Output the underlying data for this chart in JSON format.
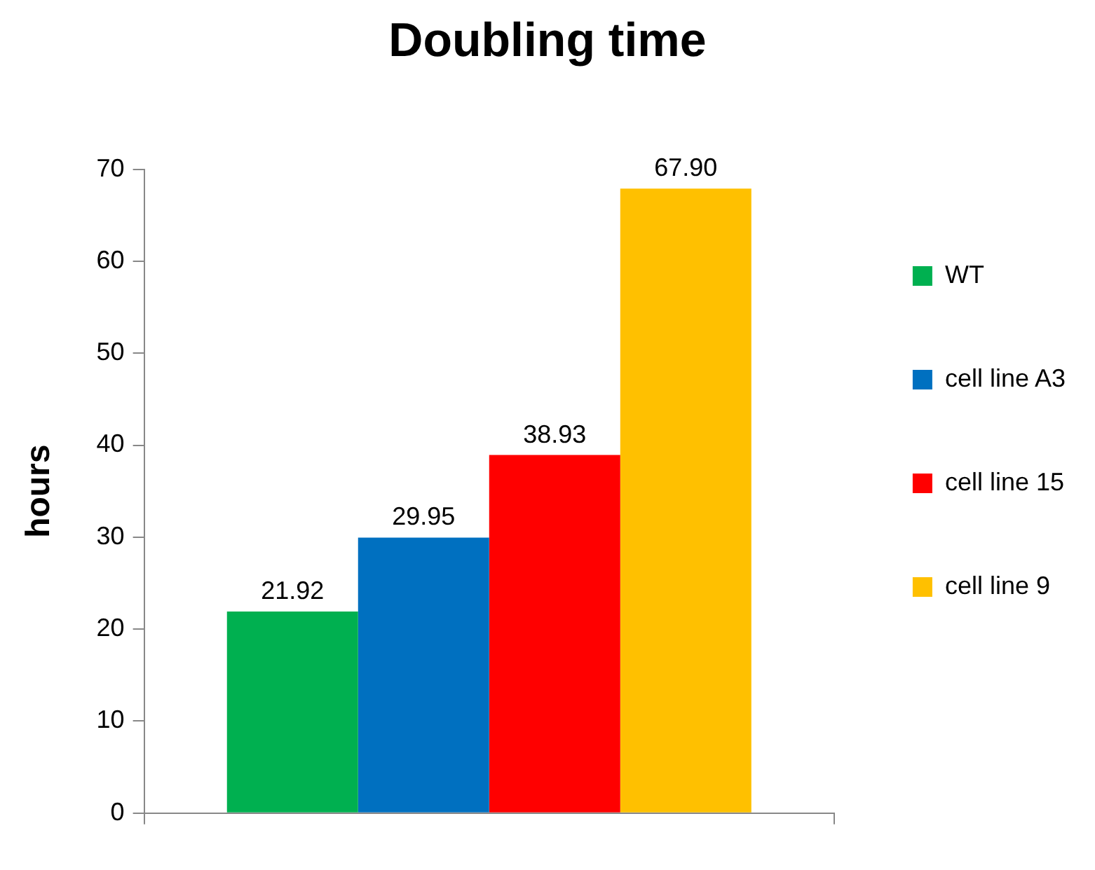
{
  "chart_data": {
    "type": "bar",
    "title": "Doubling time",
    "ylabel": "hours",
    "categories": [
      null
    ],
    "series": [
      {
        "name": "WT",
        "color": "#00b050",
        "values": [
          21.92
        ],
        "value_labels": [
          "21.92"
        ]
      },
      {
        "name": "cell line A3",
        "color": "#0070c0",
        "values": [
          29.95
        ],
        "value_labels": [
          "29.95"
        ]
      },
      {
        "name": "cell line 15",
        "color": "#ff0000",
        "values": [
          38.93
        ],
        "value_labels": [
          "38.93"
        ]
      },
      {
        "name": "cell line 9",
        "color": "#ffc000",
        "values": [
          67.9
        ],
        "value_labels": [
          "67.90"
        ]
      }
    ],
    "ylim": [
      0,
      70
    ],
    "yticks": [
      0,
      10,
      20,
      30,
      40,
      50,
      60,
      70
    ],
    "grid": false,
    "legend": "right"
  }
}
